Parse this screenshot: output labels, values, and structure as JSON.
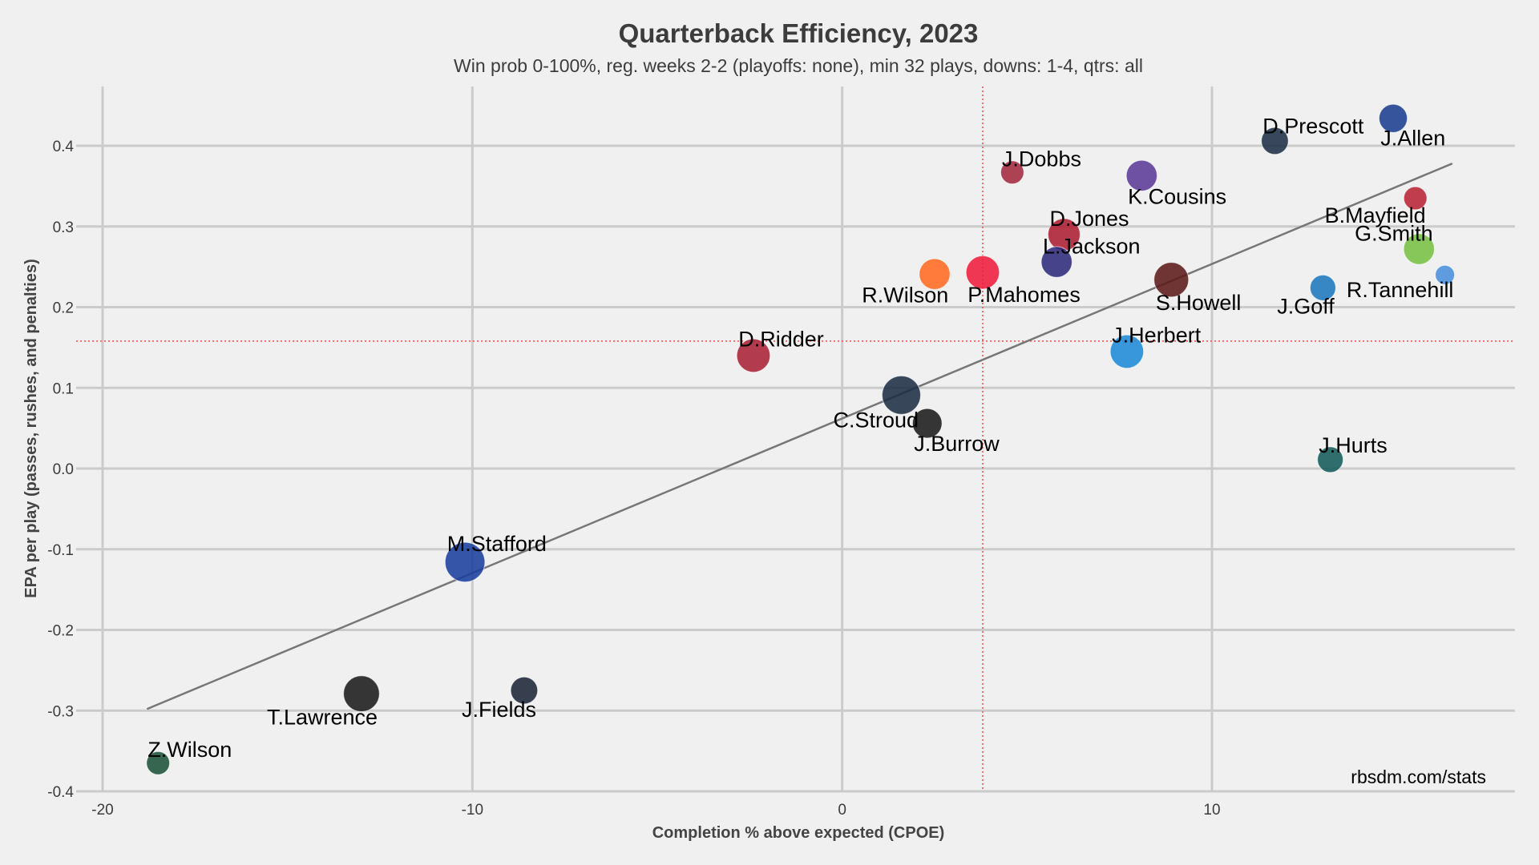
{
  "chart_data": {
    "type": "scatter",
    "title": "Quarterback Efficiency, 2023",
    "subtitle": "Win prob 0-100%, reg. weeks 2-2 (playoffs: none), min 32 plays, downs: 1-4, qtrs: all",
    "xlabel": "Completion % above expected (CPOE)",
    "ylabel": "EPA per play (passes, rushes, and penalties)",
    "xlim": [
      -20.3,
      18.2
    ],
    "ylim": [
      -0.4,
      0.47
    ],
    "xticks": [
      -20,
      -10,
      0,
      10
    ],
    "yticks": [
      -0.4,
      -0.3,
      -0.2,
      -0.1,
      0.0,
      0.1,
      0.2,
      0.3,
      0.4
    ],
    "xtick_labels": [
      "-20",
      "-10",
      "0",
      "10"
    ],
    "ytick_labels": [
      "-0.4",
      "-0.3",
      "-0.2",
      "-0.1",
      "0.0",
      "0.1",
      "0.2",
      "0.3",
      "0.4"
    ],
    "grid": true,
    "reference_lines": {
      "x_mean": 3.8,
      "y_mean": 0.158,
      "color": "#ff4444"
    },
    "trend_line": {
      "x": [
        -18.8,
        16.5
      ],
      "y": [
        -0.298,
        0.378
      ],
      "color": "#777777"
    },
    "credit": "rbsdm.com/stats",
    "points": [
      {
        "name": "J.Allen",
        "x": 14.9,
        "y": 0.434,
        "size": 1.1,
        "color": "#1a3e8f",
        "label_pos": "below-right"
      },
      {
        "name": "D.Prescott",
        "x": 11.7,
        "y": 0.406,
        "size": 1.05,
        "color": "#1e2f45",
        "label_pos": "above-right"
      },
      {
        "name": "J.Dobbs",
        "x": 4.6,
        "y": 0.367,
        "size": 0.9,
        "color": "#a3293f",
        "label_pos": "above-right"
      },
      {
        "name": "K.Cousins",
        "x": 8.1,
        "y": 0.363,
        "size": 1.2,
        "color": "#5b3a96",
        "label_pos": "below-right"
      },
      {
        "name": "B.Mayfield",
        "x": 15.5,
        "y": 0.335,
        "size": 0.9,
        "color": "#b82336",
        "label_pos": "below-left"
      },
      {
        "name": "D.Jones",
        "x": 6.0,
        "y": 0.29,
        "size": 1.25,
        "color": "#ac1d32",
        "label_pos": "above-right"
      },
      {
        "name": "G.Smith",
        "x": 15.6,
        "y": 0.272,
        "size": 1.2,
        "color": "#77c043",
        "label_pos": "above-left"
      },
      {
        "name": "L.Jackson",
        "x": 5.8,
        "y": 0.256,
        "size": 1.2,
        "color": "#2e2a7c",
        "label_pos": "above-right"
      },
      {
        "name": "P.Mahomes",
        "x": 3.8,
        "y": 0.243,
        "size": 1.3,
        "color": "#ee1d3d",
        "label_pos": "below-right"
      },
      {
        "name": "R.Wilson",
        "x": 2.5,
        "y": 0.241,
        "size": 1.2,
        "color": "#ff6a21",
        "label_pos": "below-left"
      },
      {
        "name": "R.Tannehill",
        "x": 16.3,
        "y": 0.24,
        "size": 0.75,
        "color": "#4a90dc",
        "label_pos": "below-left"
      },
      {
        "name": "S.Howell",
        "x": 8.9,
        "y": 0.234,
        "size": 1.35,
        "color": "#5c1a1a",
        "label_pos": "below-right"
      },
      {
        "name": "J.Goff",
        "x": 13.0,
        "y": 0.224,
        "size": 1.0,
        "color": "#1b78bd",
        "label_pos": "below-left"
      },
      {
        "name": "J.Herbert",
        "x": 7.7,
        "y": 0.145,
        "size": 1.3,
        "color": "#1d8ad6",
        "label_pos": "above-right"
      },
      {
        "name": "D.Ridder",
        "x": -2.4,
        "y": 0.14,
        "size": 1.3,
        "color": "#a92237",
        "label_pos": "above-right"
      },
      {
        "name": "C.Stroud",
        "x": 1.6,
        "y": 0.091,
        "size": 1.5,
        "color": "#1c2f43",
        "label_pos": "below-left"
      },
      {
        "name": "J.Burrow",
        "x": 2.3,
        "y": 0.056,
        "size": 1.15,
        "color": "#1a1a1a",
        "label_pos": "below-right"
      },
      {
        "name": "J.Hurts",
        "x": 13.2,
        "y": 0.011,
        "size": 1.0,
        "color": "#145b5b",
        "label_pos": "above-right"
      },
      {
        "name": "M.Stafford",
        "x": -10.2,
        "y": -0.116,
        "size": 1.55,
        "color": "#1a3f9e",
        "label_pos": "above-right"
      },
      {
        "name": "J.Fields",
        "x": -8.6,
        "y": -0.275,
        "size": 1.05,
        "color": "#1d2538",
        "label_pos": "below-left"
      },
      {
        "name": "T.Lawrence",
        "x": -13.0,
        "y": -0.279,
        "size": 1.4,
        "color": "#1a1a1a",
        "label_pos": "below-left"
      },
      {
        "name": "Z.Wilson",
        "x": -18.5,
        "y": -0.365,
        "size": 0.9,
        "color": "#1d5239",
        "label_pos": "above-right"
      }
    ]
  }
}
